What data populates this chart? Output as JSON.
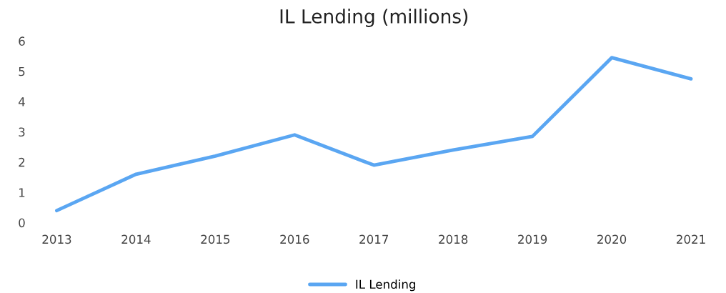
{
  "chart_data": {
    "type": "line",
    "title": "IL Lending (millions)",
    "categories": [
      "2013",
      "2014",
      "2015",
      "2016",
      "2017",
      "2018",
      "2019",
      "2020",
      "2021"
    ],
    "series": [
      {
        "name": "IL Lending",
        "color": "#5aa6f2",
        "values": [
          0.4,
          1.6,
          2.2,
          2.9,
          1.9,
          2.4,
          2.85,
          5.45,
          4.75
        ]
      }
    ],
    "ylim": [
      0,
      6
    ],
    "yticks": [
      0,
      1,
      2,
      3,
      4,
      5,
      6
    ],
    "grid": false,
    "legend": "bottom",
    "marker": "none",
    "line_style": "solid"
  }
}
